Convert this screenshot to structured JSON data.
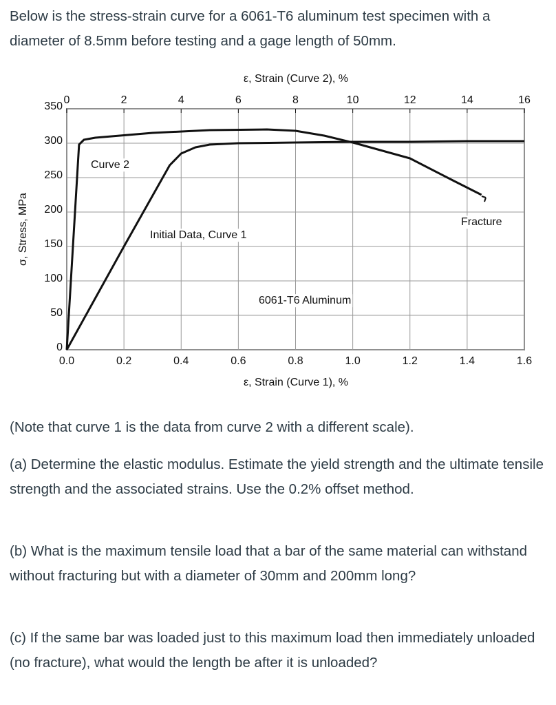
{
  "intro": "Below is the stress-strain curve for a 6061-T6 aluminum test specimen with a diameter of 8.5mm before testing and a gage length of 50mm.",
  "chart_data": {
    "type": "line",
    "xlabel": "ε, Strain (Curve 1), %",
    "x2label": "ε, Strain (Curve 2), %",
    "ylabel": "σ, Stress, MPa",
    "xlim": [
      0,
      1.6
    ],
    "xticks": [
      {
        "value": 0,
        "label": "0.0"
      },
      0.2,
      0.4,
      0.6,
      0.8,
      {
        "value": 1,
        "label": "1.0"
      },
      1.2,
      1.4,
      1.6
    ],
    "x2lim": [
      0,
      16
    ],
    "x2ticks": [
      0,
      2,
      4,
      6,
      8,
      10,
      12,
      14,
      16
    ],
    "ylim": [
      0,
      350
    ],
    "yticks": [
      0,
      50,
      100,
      150,
      200,
      250,
      300,
      350
    ],
    "grid": true,
    "series": [
      {
        "name": "Initial Data, Curve 1",
        "color": "#111111",
        "x": [
          0,
          0.043,
          0.06,
          0.1,
          0.3,
          0.5,
          0.7,
          0.8,
          0.9,
          1.0,
          1.2,
          1.35,
          1.45
        ],
        "values": [
          0,
          298,
          305,
          308,
          315,
          319,
          320,
          318,
          311,
          301,
          278,
          246,
          225
        ]
      },
      {
        "name": "Curve 2",
        "color": "#111111",
        "axis": "x2",
        "x": [
          0,
          2,
          3.6,
          4.0,
          4.5,
          5.0,
          6.0,
          8.0,
          10.0,
          12.0,
          14.0,
          16.0
        ],
        "values": [
          0,
          150,
          268,
          285,
          294,
          298,
          300,
          301,
          302,
          302,
          303,
          303
        ]
      }
    ],
    "annotations": [
      "Curve 2",
      "Initial Data, Curve 1",
      "6061-T6 Aluminum",
      "Fracture"
    ]
  },
  "paragraphs": [
    "(Note that curve 1 is the data from curve 2 with a different scale).",
    "(a) Determine the elastic modulus. Estimate the yield strength and the ultimate tensile strength and the associated strains. Use the 0.2% offset method.",
    "(b) What is the maximum tensile load that a bar of the same material can withstand without fracturing but with a diameter of 30mm and 200mm long?",
    "(c) If the same bar was loaded just to this maximum load then immediately unloaded (no fracture), what would the length be after it is unloaded?"
  ]
}
